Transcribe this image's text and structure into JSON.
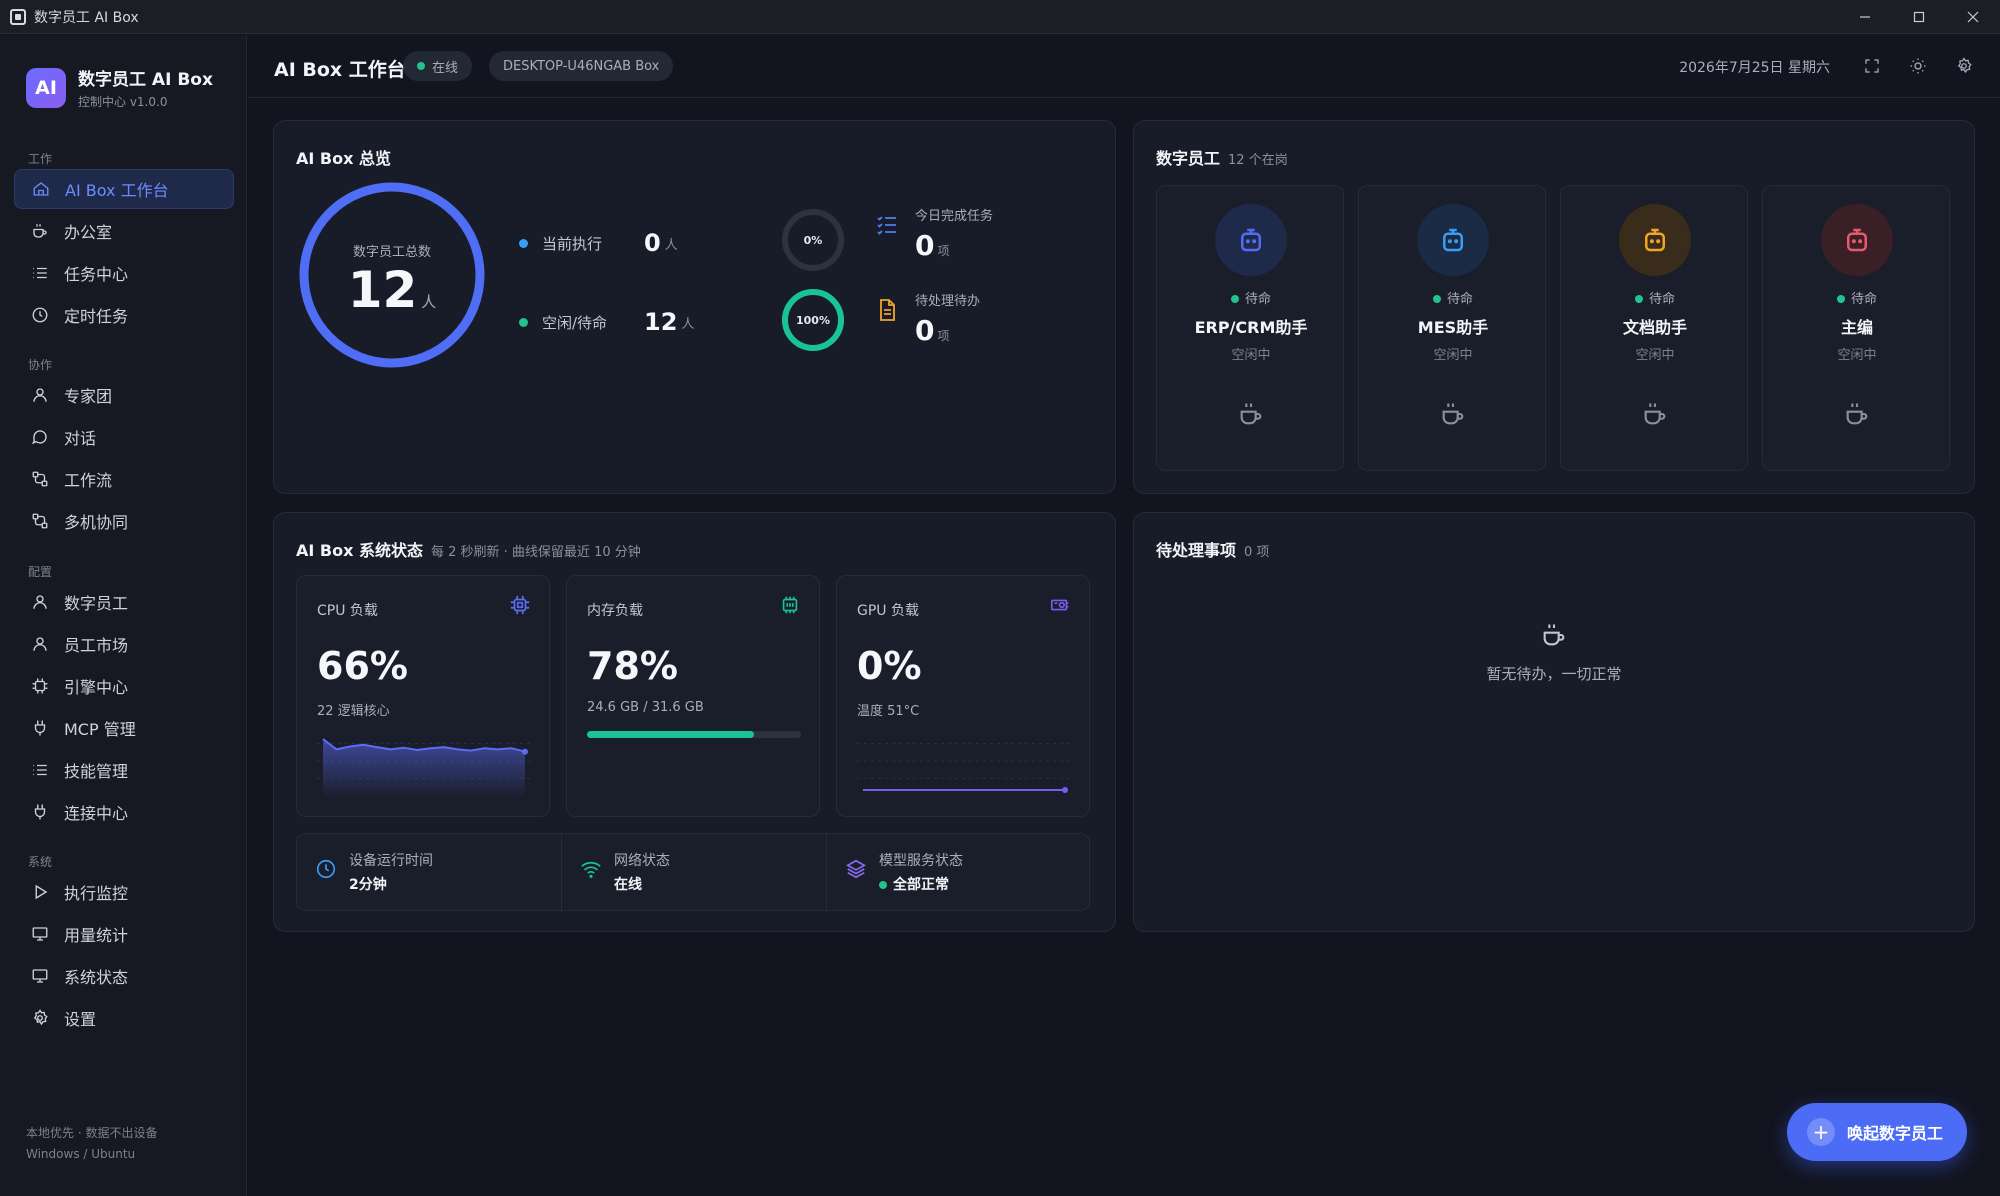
{
  "window": {
    "title": "数字员工 AI Box",
    "controls": [
      "minimize",
      "maximize",
      "close"
    ]
  },
  "brand": {
    "logo_text": "AI",
    "name": "数字员工 AI Box",
    "subtitle": "控制中心 v1.0.0"
  },
  "sidebar": {
    "sections": [
      {
        "label": "工作",
        "items": [
          {
            "label": "AI Box 工作台",
            "icon": "home-icon",
            "active": true
          },
          {
            "label": "办公室",
            "icon": "cup-icon"
          },
          {
            "label": "任务中心",
            "icon": "list-icon"
          },
          {
            "label": "定时任务",
            "icon": "clock-icon"
          }
        ]
      },
      {
        "label": "协作",
        "items": [
          {
            "label": "专家团",
            "icon": "user-icon"
          },
          {
            "label": "对话",
            "icon": "chat-icon"
          },
          {
            "label": "工作流",
            "icon": "workflow-icon"
          },
          {
            "label": "多机协同",
            "icon": "workflow-icon"
          }
        ]
      },
      {
        "label": "配置",
        "items": [
          {
            "label": "数字员工",
            "icon": "user-icon"
          },
          {
            "label": "员工市场",
            "icon": "user-icon"
          },
          {
            "label": "引擎中心",
            "icon": "chip-icon"
          },
          {
            "label": "MCP 管理",
            "icon": "plug-icon"
          },
          {
            "label": "技能管理",
            "icon": "list-icon"
          },
          {
            "label": "连接中心",
            "icon": "plug-icon"
          }
        ]
      },
      {
        "label": "系统",
        "items": [
          {
            "label": "执行监控",
            "icon": "play-icon"
          },
          {
            "label": "用量统计",
            "icon": "monitor-icon"
          },
          {
            "label": "系统状态",
            "icon": "monitor-icon"
          },
          {
            "label": "设置",
            "icon": "gear-icon"
          }
        ]
      }
    ],
    "footer_line1": "本地优先 · 数据不出设备",
    "footer_line2": "Windows / Ubuntu"
  },
  "header": {
    "title": "AI Box 工作台",
    "status": "在线",
    "device": "DESKTOP-U46NGAB Box",
    "date": "2026年7月25日 星期六"
  },
  "overview": {
    "title": "AI Box 总览",
    "total_label": "数字员工总数",
    "total_value": "12",
    "unit_person": "人",
    "executing_label": "当前执行",
    "executing_value": "0",
    "idle_label": "空闲/待命",
    "idle_value": "12",
    "done_pct": "0%",
    "done_fraction": 0,
    "idle_pct": "100%",
    "idle_fraction": 1,
    "today_done_label": "今日完成任务",
    "today_done_value": "0",
    "pending_label": "待处理待办",
    "pending_value": "0",
    "unit_item": "项"
  },
  "workers": {
    "title": "数字员工",
    "count_text": "12 个在岗",
    "items": [
      {
        "name": "ERP/CRM助手",
        "status": "待命",
        "sub": "空闲中",
        "color": "#4f6df5",
        "bg": "#1f2a4a"
      },
      {
        "name": "MES助手",
        "status": "待命",
        "sub": "空闲中",
        "color": "#3b9cf5",
        "bg": "#1b2b45"
      },
      {
        "name": "文档助手",
        "status": "待命",
        "sub": "空闲中",
        "color": "#f0a52a",
        "bg": "#3a2c1a"
      },
      {
        "name": "主编",
        "status": "待命",
        "sub": "空闲中",
        "color": "#e85a6a",
        "bg": "#3a1f27"
      }
    ]
  },
  "system": {
    "title": "AI Box 系统状态",
    "subtitle": "每 2 秒刷新 · 曲线保留最近 10 分钟",
    "cpu": {
      "label": "CPU 负载",
      "value": "66%",
      "sub": "22 逻辑核心",
      "color": "#5b6cf5",
      "series": [
        88,
        70,
        75,
        78,
        74,
        70,
        73,
        69,
        72,
        74,
        70,
        68,
        72,
        70,
        72,
        66
      ]
    },
    "mem": {
      "label": "内存负载",
      "value": "78%",
      "sub": "24.6 GB / 31.6 GB",
      "fraction": 0.78,
      "color": "#19c29a"
    },
    "gpu": {
      "label": "GPU 负载",
      "value": "0%",
      "sub": "温度 51°C",
      "color": "#7b5cf0",
      "series": [
        0,
        0,
        0,
        0,
        0,
        0,
        0,
        0,
        0,
        0,
        0,
        0
      ]
    },
    "uptime_label": "设备运行时间",
    "uptime_value": "2分钟",
    "network_label": "网络状态",
    "network_value": "在线",
    "model_label": "模型服务状态",
    "model_value": "全部正常"
  },
  "pending": {
    "title": "待处理事项",
    "count_text": "0 项",
    "empty_text": "暂无待办，一切正常"
  },
  "fab": {
    "label": "唤起数字员工"
  }
}
